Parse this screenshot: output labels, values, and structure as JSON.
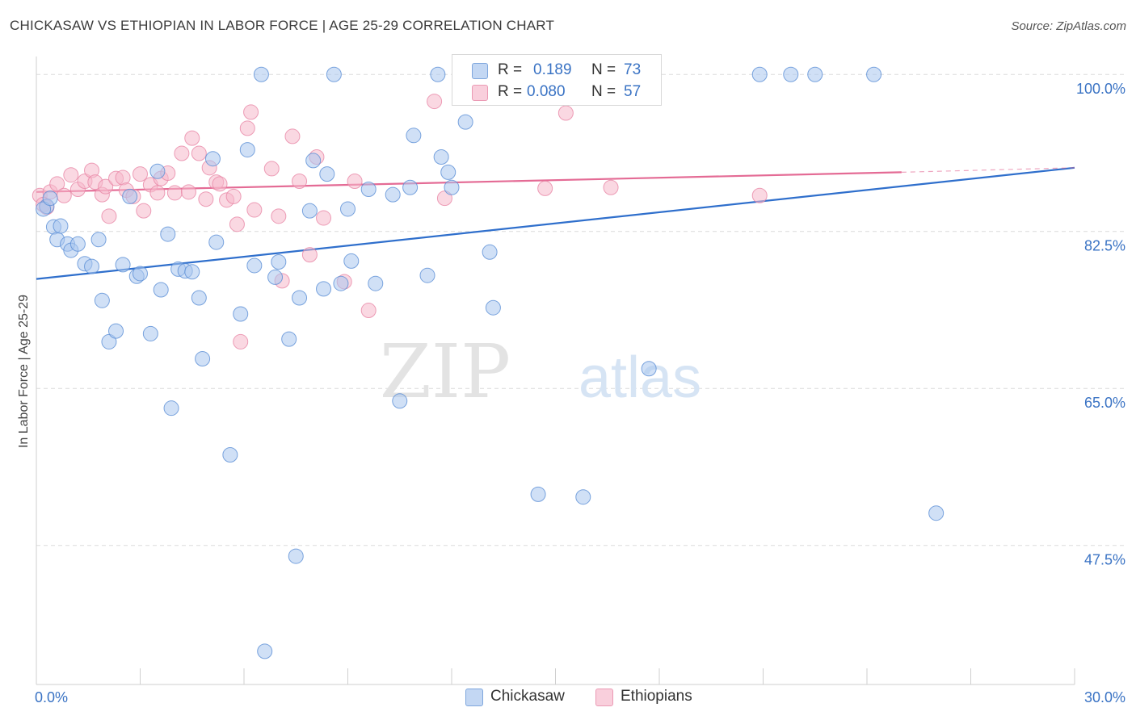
{
  "title": "CHICKASAW VS ETHIOPIAN IN LABOR FORCE | AGE 25-29 CORRELATION CHART",
  "source": "Source: ZipAtlas.com",
  "watermark": {
    "zip": "ZIP",
    "atlas": "atlas"
  },
  "legend": {
    "rows": [
      {
        "r_label": "R =",
        "r_value": "0.189",
        "n_label": "N =",
        "n_value": "73",
        "color": "#a9c6ee"
      },
      {
        "r_label": "R =",
        "r_value": "0.080",
        "n_label": "N =",
        "n_value": "57",
        "color": "#f6b8cb"
      }
    ]
  },
  "bottom_legend": [
    {
      "label": "Chickasaw",
      "color": "#a9c6ee"
    },
    {
      "label": "Ethiopians",
      "color": "#f6b8cb"
    }
  ],
  "chart_data": {
    "type": "scatter",
    "title": "CHICKASAW VS ETHIOPIAN IN LABOR FORCE | AGE 25-29 CORRELATION CHART",
    "xlabel": "",
    "ylabel": "In Labor Force | Age 25-29",
    "xlim": [
      0,
      30
    ],
    "ylim": [
      32,
      102
    ],
    "x_tick_labels": [
      {
        "value": 0,
        "label": "0.0%"
      },
      {
        "value": 30,
        "label": "30.0%"
      }
    ],
    "y_tick_labels": [
      {
        "value": 100,
        "label": "100.0%"
      },
      {
        "value": 82.5,
        "label": "82.5%"
      },
      {
        "value": 65,
        "label": "65.0%"
      },
      {
        "value": 47.5,
        "label": "47.5%"
      }
    ],
    "grid": true,
    "legend_position": "top-center",
    "series": [
      {
        "name": "Chickasaw",
        "color": "#5b8fd6",
        "fill": "#a9c6ee",
        "points": [
          [
            0.3,
            85.3
          ],
          [
            0.5,
            83.0
          ],
          [
            0.6,
            81.6
          ],
          [
            0.7,
            83.1
          ],
          [
            0.9,
            81.1
          ],
          [
            1.0,
            80.4
          ],
          [
            1.2,
            81.1
          ],
          [
            1.4,
            78.9
          ],
          [
            1.6,
            78.6
          ],
          [
            1.8,
            81.6
          ],
          [
            1.9,
            74.8
          ],
          [
            2.1,
            70.2
          ],
          [
            2.3,
            71.4
          ],
          [
            2.5,
            78.8
          ],
          [
            2.7,
            86.4
          ],
          [
            2.9,
            77.5
          ],
          [
            3.0,
            77.8
          ],
          [
            3.3,
            71.1
          ],
          [
            3.5,
            89.2
          ],
          [
            3.6,
            76.0
          ],
          [
            3.8,
            82.2
          ],
          [
            3.9,
            62.8
          ],
          [
            4.1,
            78.3
          ],
          [
            4.3,
            78.1
          ],
          [
            4.5,
            78.0
          ],
          [
            4.7,
            75.1
          ],
          [
            4.8,
            68.3
          ],
          [
            5.1,
            90.6
          ],
          [
            5.2,
            81.3
          ],
          [
            5.6,
            57.6
          ],
          [
            5.9,
            73.3
          ],
          [
            6.1,
            91.6
          ],
          [
            6.3,
            78.7
          ],
          [
            6.5,
            100.0
          ],
          [
            6.6,
            35.7
          ],
          [
            6.9,
            77.4
          ],
          [
            7.0,
            79.1
          ],
          [
            7.3,
            70.5
          ],
          [
            7.5,
            46.3
          ],
          [
            7.6,
            75.1
          ],
          [
            7.9,
            84.8
          ],
          [
            8.0,
            90.4
          ],
          [
            8.3,
            76.1
          ],
          [
            8.4,
            88.9
          ],
          [
            8.6,
            100.0
          ],
          [
            8.8,
            76.7
          ],
          [
            9.0,
            85.0
          ],
          [
            9.1,
            79.2
          ],
          [
            9.6,
            87.2
          ],
          [
            9.8,
            76.7
          ],
          [
            10.3,
            86.6
          ],
          [
            10.5,
            63.6
          ],
          [
            10.8,
            87.4
          ],
          [
            10.9,
            93.2
          ],
          [
            11.3,
            77.6
          ],
          [
            11.6,
            100.0
          ],
          [
            11.7,
            90.8
          ],
          [
            11.9,
            89.1
          ],
          [
            12.0,
            87.4
          ],
          [
            12.4,
            94.7
          ],
          [
            13.1,
            80.2
          ],
          [
            13.2,
            74.0
          ],
          [
            14.5,
            53.2
          ],
          [
            15.8,
            52.9
          ],
          [
            16.7,
            100.0
          ],
          [
            17.7,
            67.2
          ],
          [
            20.9,
            100.0
          ],
          [
            21.8,
            100.0
          ],
          [
            22.5,
            100.0
          ],
          [
            24.2,
            100.0
          ],
          [
            26.0,
            51.1
          ],
          [
            0.2,
            85.0
          ],
          [
            0.4,
            86.2
          ]
        ]
      },
      {
        "name": "Ethiopians",
        "color": "#e887a6",
        "fill": "#f6b8cb",
        "points": [
          [
            0.1,
            86.5
          ],
          [
            0.2,
            85.5
          ],
          [
            0.4,
            86.9
          ],
          [
            0.6,
            87.8
          ],
          [
            0.8,
            86.5
          ],
          [
            1.0,
            88.8
          ],
          [
            1.2,
            87.2
          ],
          [
            1.4,
            88.1
          ],
          [
            1.6,
            89.3
          ],
          [
            1.7,
            88.0
          ],
          [
            1.9,
            86.6
          ],
          [
            2.0,
            87.5
          ],
          [
            2.1,
            84.2
          ],
          [
            2.3,
            88.4
          ],
          [
            2.5,
            88.5
          ],
          [
            2.6,
            87.1
          ],
          [
            2.8,
            86.4
          ],
          [
            3.0,
            88.9
          ],
          [
            3.1,
            84.8
          ],
          [
            3.3,
            87.7
          ],
          [
            3.5,
            86.8
          ],
          [
            3.6,
            88.4
          ],
          [
            3.8,
            89.0
          ],
          [
            4.0,
            86.8
          ],
          [
            4.2,
            91.2
          ],
          [
            4.4,
            86.9
          ],
          [
            4.5,
            92.9
          ],
          [
            4.7,
            91.2
          ],
          [
            4.9,
            86.1
          ],
          [
            5.0,
            89.6
          ],
          [
            5.2,
            88.0
          ],
          [
            5.3,
            87.8
          ],
          [
            5.5,
            86.0
          ],
          [
            5.7,
            86.4
          ],
          [
            5.8,
            83.3
          ],
          [
            5.9,
            70.2
          ],
          [
            6.1,
            94.0
          ],
          [
            6.2,
            95.8
          ],
          [
            6.3,
            84.9
          ],
          [
            6.8,
            89.5
          ],
          [
            7.0,
            84.2
          ],
          [
            7.1,
            77.0
          ],
          [
            7.4,
            93.1
          ],
          [
            7.6,
            88.1
          ],
          [
            7.9,
            79.9
          ],
          [
            8.1,
            90.8
          ],
          [
            8.3,
            84.0
          ],
          [
            8.9,
            76.9
          ],
          [
            9.2,
            88.1
          ],
          [
            9.6,
            73.7
          ],
          [
            11.5,
            97.0
          ],
          [
            11.8,
            86.2
          ],
          [
            14.7,
            87.3
          ],
          [
            15.3,
            95.7
          ],
          [
            16.6,
            87.4
          ],
          [
            20.9,
            86.5
          ],
          [
            0.3,
            85.2
          ]
        ]
      }
    ],
    "trendlines": [
      {
        "series": "Chickasaw",
        "x": [
          0,
          30
        ],
        "y": [
          77.2,
          89.6
        ],
        "color": "#2f6fcc"
      },
      {
        "series": "Ethiopians",
        "x": [
          0,
          25
        ],
        "y": [
          86.9,
          89.1
        ],
        "color": "#e46b95",
        "dashed_extension_to": [
          30,
          89.6
        ]
      }
    ]
  }
}
